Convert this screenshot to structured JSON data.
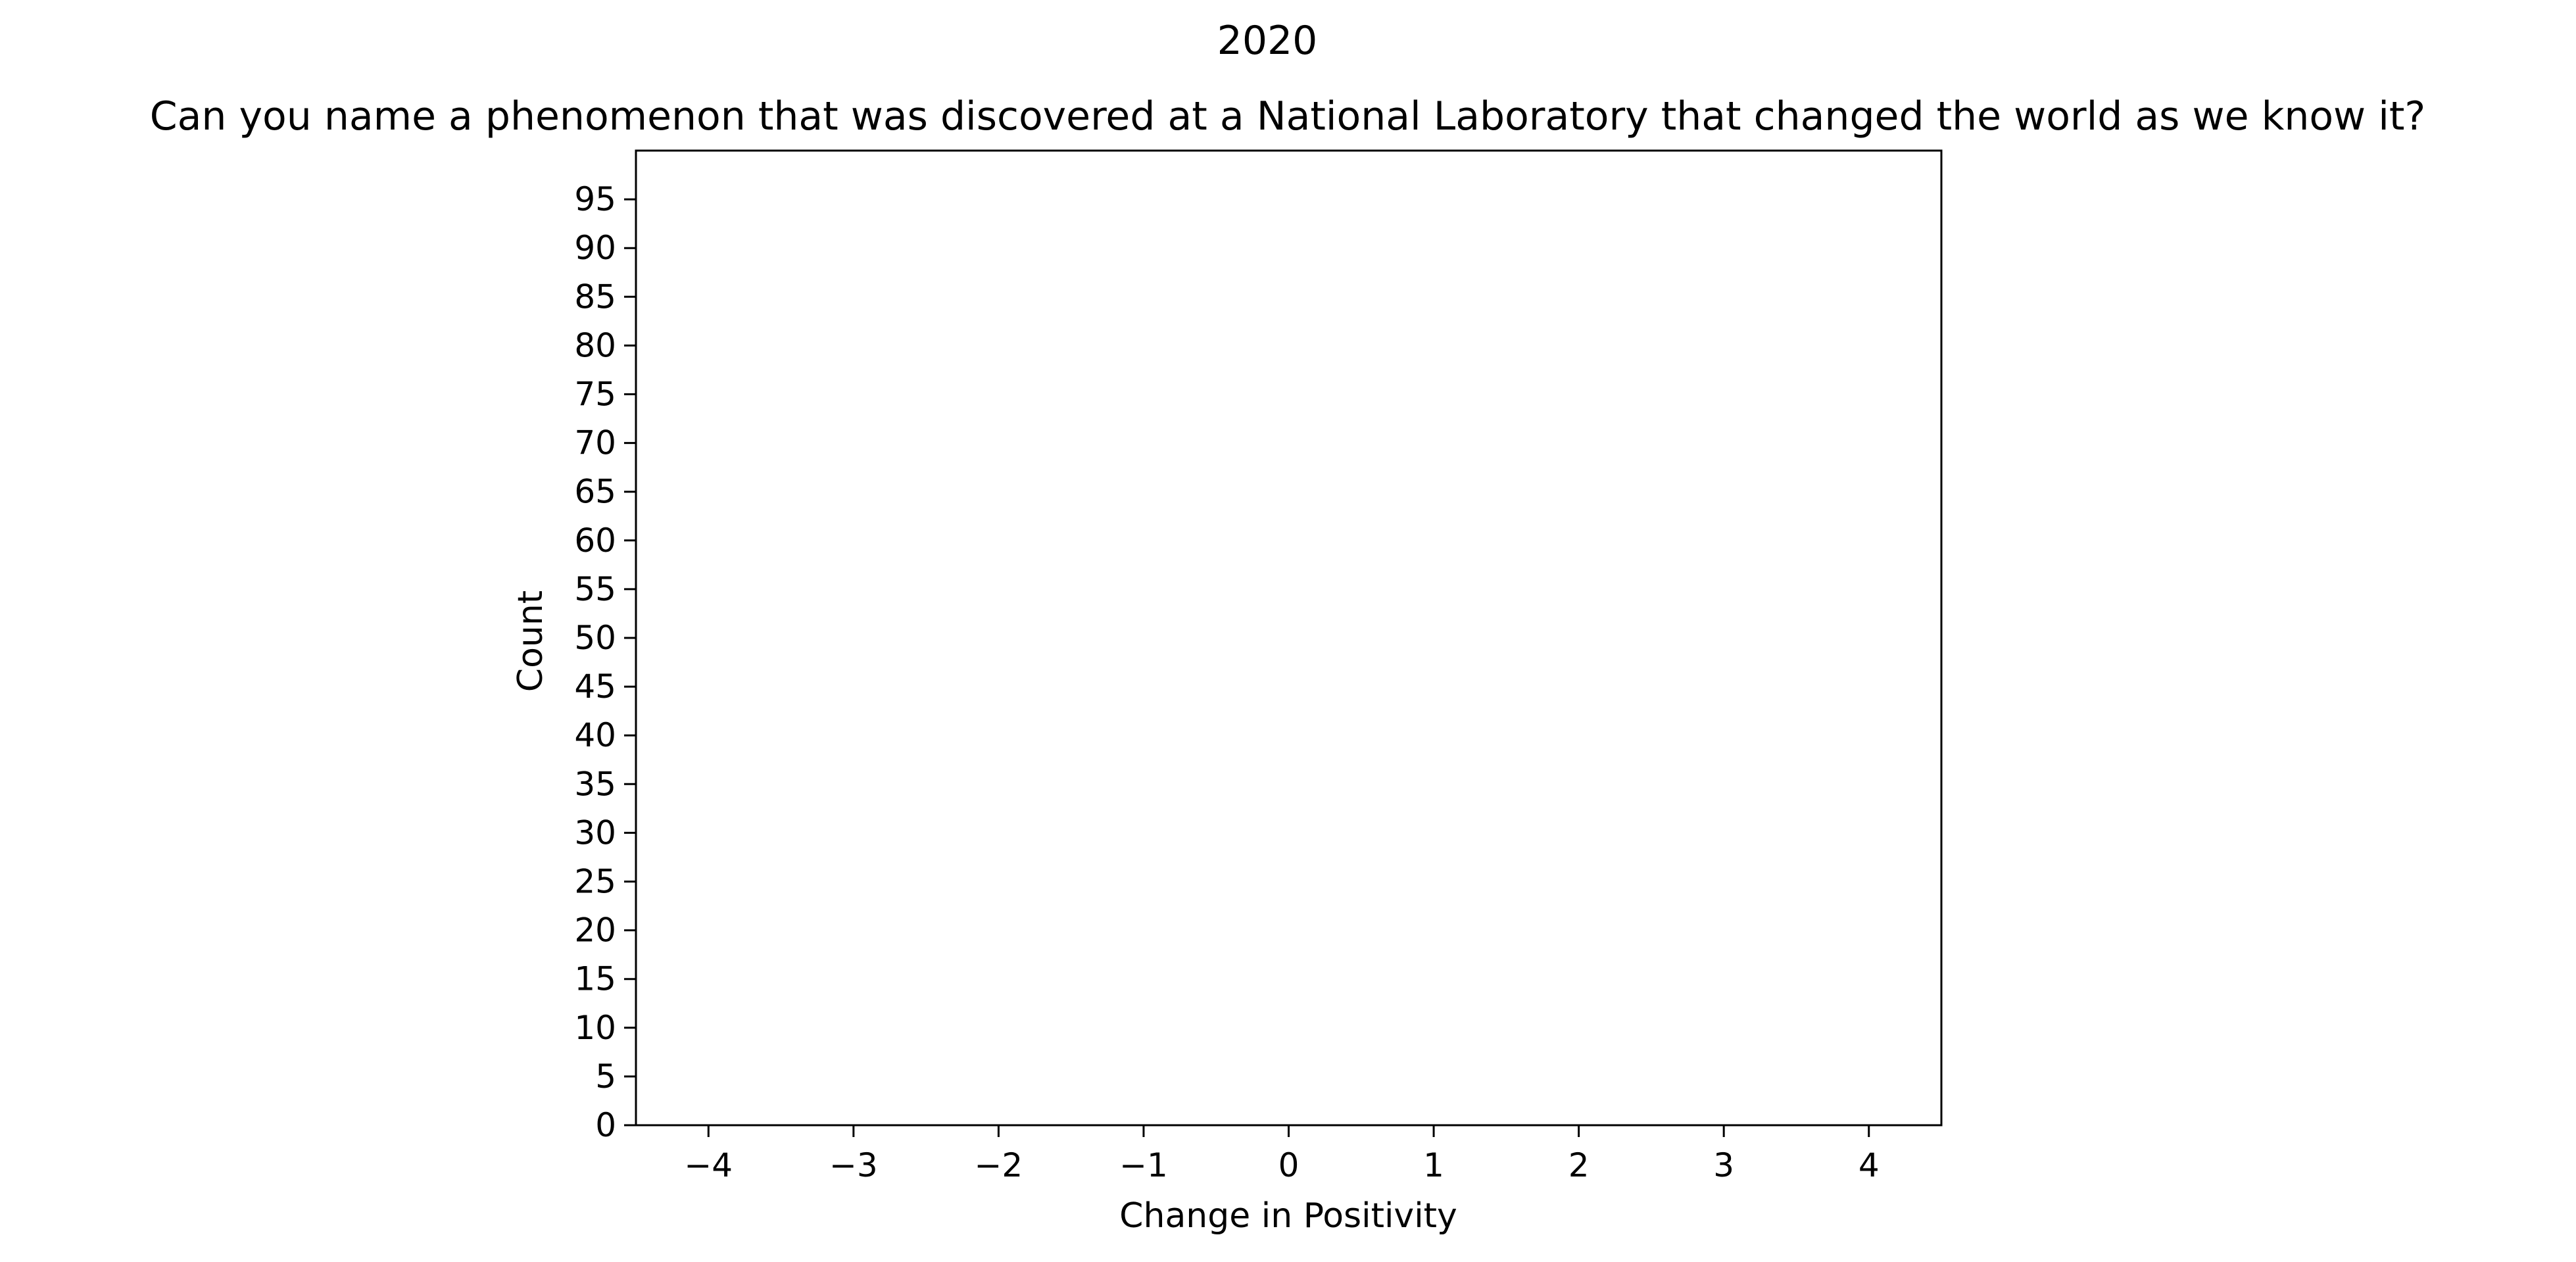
{
  "chart_data": {
    "type": "bar",
    "suptitle": "2020",
    "title": "Can you name a phenomenon that was discovered at a National Laboratory that changed the world as we know it?",
    "xlabel": "Change in Positivity",
    "ylabel": "Count",
    "xlim": [
      -4.5,
      4.5
    ],
    "ylim": [
      0,
      100
    ],
    "xticks": [
      -4,
      -3,
      -2,
      -1,
      0,
      1,
      2,
      3,
      4
    ],
    "xtick_labels": [
      "−4",
      "−3",
      "−2",
      "−1",
      "0",
      "1",
      "2",
      "3",
      "4"
    ],
    "yticks": [
      0,
      5,
      10,
      15,
      20,
      25,
      30,
      35,
      40,
      45,
      50,
      55,
      60,
      65,
      70,
      75,
      80,
      85,
      90,
      95
    ],
    "ytick_labels": [
      "0",
      "5",
      "10",
      "15",
      "20",
      "25",
      "30",
      "35",
      "40",
      "45",
      "50",
      "55",
      "60",
      "65",
      "70",
      "75",
      "80",
      "85",
      "90",
      "95"
    ],
    "x": [],
    "values": [],
    "grid": false,
    "legend": "none"
  }
}
